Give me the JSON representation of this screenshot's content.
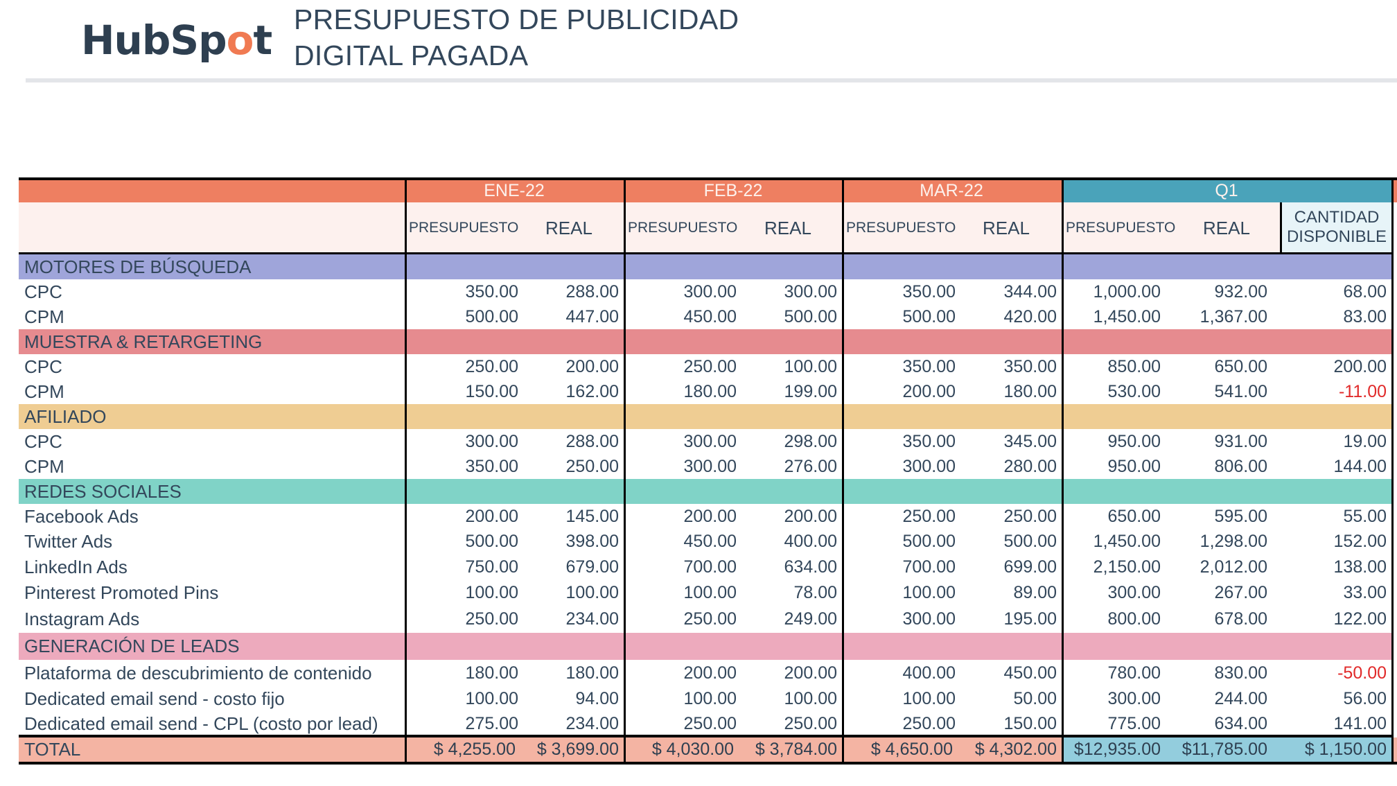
{
  "header": {
    "logo": "HubSpot",
    "title_line1": "PRESUPUESTO DE PUBLICIDAD",
    "title_line2": "DIGITAL PAGADA"
  },
  "colors": {
    "month_header": "#ee7f61",
    "q1_header": "#4aa3ba",
    "subheader_bg": "#fdf1ee",
    "cantidad_bg": "#e7f4f8",
    "cat_motores": "#9fa5da",
    "cat_muestra": "#e68b8f",
    "cat_afiliado": "#efcd93",
    "cat_redes": "#80d3c7",
    "cat_leads": "#edaabd",
    "total_bg": "#f4b4a3",
    "total_q1_bg": "#93cddd",
    "negative": "#e12a2a"
  },
  "columns": {
    "months": [
      "ENE-22",
      "FEB-22",
      "MAR-22"
    ],
    "quarter": "Q1",
    "sub_budget": "PRESUPUESTO",
    "sub_actual": "REAL",
    "sub_available_line1": "CANTIDAD",
    "sub_available_line2": "DISPONIBLE"
  },
  "rows": [
    {
      "type": "category",
      "label": "MOTORES DE BÚSQUEDA",
      "color_key": "cat_motores"
    },
    {
      "type": "item",
      "label": "CPC",
      "values": [
        "350.00",
        "288.00",
        "300.00",
        "300.00",
        "350.00",
        "344.00",
        "1,000.00",
        "932.00",
        "68.00"
      ]
    },
    {
      "type": "item",
      "label": "CPM",
      "values": [
        "500.00",
        "447.00",
        "450.00",
        "500.00",
        "500.00",
        "420.00",
        "1,450.00",
        "1,367.00",
        "83.00"
      ]
    },
    {
      "type": "category",
      "label": "MUESTRA & RETARGETING",
      "color_key": "cat_muestra"
    },
    {
      "type": "item",
      "label": "CPC",
      "values": [
        "250.00",
        "200.00",
        "250.00",
        "100.00",
        "350.00",
        "350.00",
        "850.00",
        "650.00",
        "200.00"
      ]
    },
    {
      "type": "item",
      "label": "CPM",
      "values": [
        "150.00",
        "162.00",
        "180.00",
        "199.00",
        "200.00",
        "180.00",
        "530.00",
        "541.00",
        "-11.00"
      ]
    },
    {
      "type": "category",
      "label": "AFILIADO",
      "color_key": "cat_afiliado"
    },
    {
      "type": "item",
      "label": "CPC",
      "values": [
        "300.00",
        "288.00",
        "300.00",
        "298.00",
        "350.00",
        "345.00",
        "950.00",
        "931.00",
        "19.00"
      ]
    },
    {
      "type": "item",
      "label": "CPM",
      "values": [
        "350.00",
        "250.00",
        "300.00",
        "276.00",
        "300.00",
        "280.00",
        "950.00",
        "806.00",
        "144.00"
      ]
    },
    {
      "type": "category",
      "label": "REDES SOCIALES",
      "color_key": "cat_redes"
    },
    {
      "type": "item",
      "label": "Facebook Ads",
      "values": [
        "200.00",
        "145.00",
        "200.00",
        "200.00",
        "250.00",
        "250.00",
        "650.00",
        "595.00",
        "55.00"
      ]
    },
    {
      "type": "item",
      "label": "Twitter Ads",
      "values": [
        "500.00",
        "398.00",
        "450.00",
        "400.00",
        "500.00",
        "500.00",
        "1,450.00",
        "1,298.00",
        "152.00"
      ]
    },
    {
      "type": "item",
      "label": "LinkedIn Ads",
      "values": [
        "750.00",
        "679.00",
        "700.00",
        "634.00",
        "700.00",
        "699.00",
        "2,150.00",
        "2,012.00",
        "138.00"
      ]
    },
    {
      "type": "item",
      "label": "Pinterest Promoted Pins",
      "values": [
        "100.00",
        "100.00",
        "100.00",
        "78.00",
        "100.00",
        "89.00",
        "300.00",
        "267.00",
        "33.00"
      ]
    },
    {
      "type": "item",
      "label": "Instagram Ads",
      "values": [
        "250.00",
        "234.00",
        "250.00",
        "249.00",
        "300.00",
        "195.00",
        "800.00",
        "678.00",
        "122.00"
      ]
    },
    {
      "type": "category",
      "label": "GENERACIÓN DE LEADS",
      "color_key": "cat_leads"
    },
    {
      "type": "item",
      "label": "Plataforma de descubrimiento de contenido",
      "values": [
        "180.00",
        "180.00",
        "200.00",
        "200.00",
        "400.00",
        "450.00",
        "780.00",
        "830.00",
        "-50.00"
      ]
    },
    {
      "type": "item",
      "label": "Dedicated email send - costo fijo",
      "values": [
        "100.00",
        "94.00",
        "100.00",
        "100.00",
        "100.00",
        "50.00",
        "300.00",
        "244.00",
        "56.00"
      ]
    },
    {
      "type": "item",
      "label": "Dedicated email send - CPL (costo por lead)",
      "values": [
        "275.00",
        "234.00",
        "250.00",
        "250.00",
        "250.00",
        "150.00",
        "775.00",
        "634.00",
        "141.00"
      ]
    }
  ],
  "total": {
    "label": "TOTAL",
    "values": [
      "$ 4,255.00",
      "$ 3,699.00",
      "$ 4,030.00",
      "$ 3,784.00",
      "$ 4,650.00",
      "$ 4,302.00",
      "$12,935.00",
      "$11,785.00",
      "$ 1,150.00"
    ]
  }
}
